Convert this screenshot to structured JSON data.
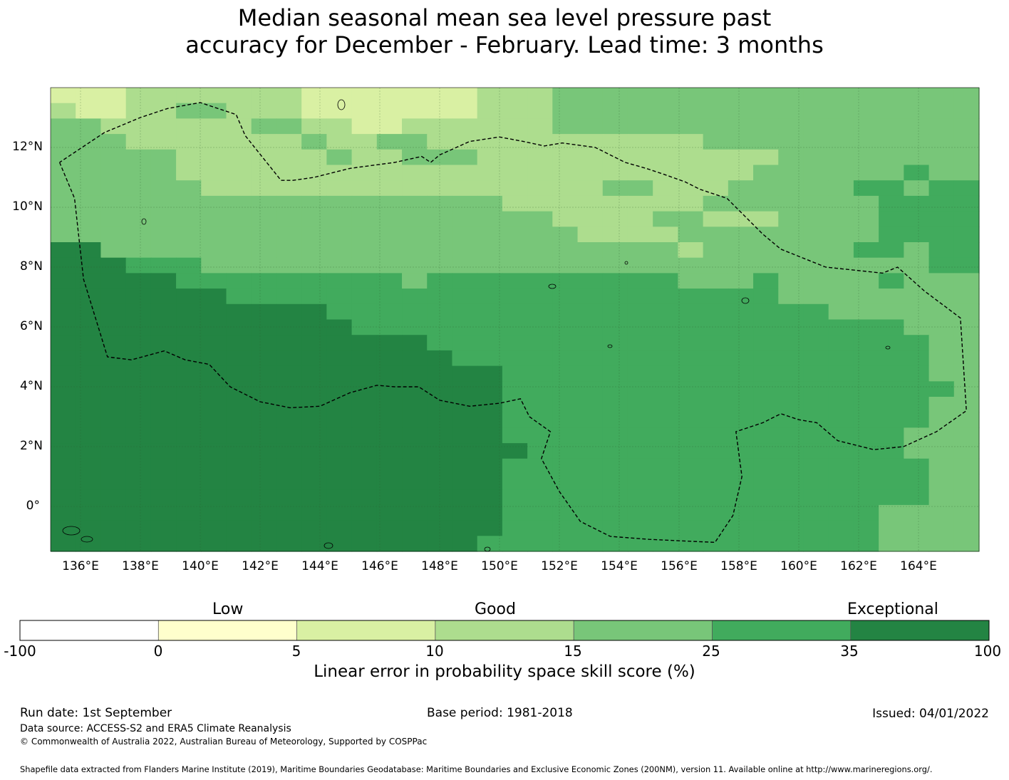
{
  "title_lines": [
    "Median seasonal mean sea level pressure past",
    "accuracy for December - February. Lead time: 3 months"
  ],
  "map": {
    "lon_labels": [
      "136°E",
      "138°E",
      "140°E",
      "142°E",
      "144°E",
      "146°E",
      "148°E",
      "150°E",
      "152°E",
      "154°E",
      "156°E",
      "158°E",
      "160°E",
      "162°E",
      "164°E"
    ],
    "lat_labels": [
      "12°N",
      "10°N",
      "8°N",
      "6°N",
      "4°N",
      "2°N",
      "0°"
    ],
    "lon_range": [
      135,
      166
    ],
    "lat_range": [
      -1.5,
      14
    ],
    "ocean_default_color": "#79c579",
    "grid_rows": [
      "AAABBBBBBBAAAAAAABBBCCCCCCCCCCCCCCCCC",
      "BAABBCCBBBAAAAAAABBBCCCCCCCCCCCCCCCCC",
      "CCBBBBBBCCBBAABBBBBBCCCCCCCCCCCCCCCCC",
      "CCCBBBBBBBCBBCCBBBBBBBBBBBCCCCCCCCCCC",
      "CCCCCBBBBBBCBBCCCBBBBBBBBBBBBCCCCCCCC",
      "CCCCCBBBBBBBBBBBBBBBBBBBBBBBCCCCCCDCC",
      "CCCCCCBBBBBBBBBBBBBBBBCCBBBCCCCCDDCDD",
      "CCCCCCCCCCCCCCCCCCBBBBBBBBCCCCCCCDDDD",
      "CCCCCCCCCCCCCCCCCCCCBBBBCCBBBCCCCDDDD",
      "CCCCCCCCCCCCCCCCCCCCCBBBBCCCCCCCCDDDD",
      "EECCCCCCCCCCCCCCCCCCCCCCCBCCCCCCDDCDD",
      "EEEDDDCCCCCCCCCCCCCCCCCCCCCCCCCCCCCDD",
      "EEEEEDDDDDDDDDCDDDDDDDDDDCCCDCCCCDCCC",
      "EEEEEEEDDDDDDDDDDDDDDDDDDDDDDCCCCCCCC",
      "EEEEEEEEEEEDDDDDDDDDDDDDDDDDDDDCCCCCC",
      "EEEEEEEEEEEEDDDDDDDDDDDDDDDDDDDDDDCCC",
      "EEEEEEEEEEEEEEEDDDDDDDDDDDDDDDDDDDDCC",
      "EEEEEEEEEEEEEEEEDDDDDDDDDDDDDDDDDDDCC",
      "EEEEEEEEEEEEEEEEEEDDDDDDDDDDDDDDDDDCC",
      "EEEEEEEEEEEEEEEEEEDDDDDDDDDDDDDDDDDDC",
      "EEEEEEEEEEEEEEEEEEDDDDDDDDDDDDDDDDDCC",
      "EEEEEEEEEEEEEEEEEEDDDDDDDDDDDDDDDDDCC",
      "EEEEEEEEEEEEEEEEEEDDDDDDDDDDDDDDDDCCC",
      "EEEEEEEEEEEEEEEEEEEDDDDDDDDDDDDDDDCCC",
      "EEEEEEEEEEEEEEEEEEDDDDDDDDDDDDDDDDDCC",
      "EEEEEEEEEEEEEEEEEEDDDDDDDDDDDDDDDDDCC",
      "EEEEEEEEEEEEEEEEEEDDDDDDDDDDDDDDDDDCC",
      "EEEEEEEEEEEEEEEEEEDDDDDDDDDDDDDDDCCCC",
      "EEEEEEEEEEEEEEEEEEDDDDDDDDDDDDDDDCCCC",
      "EEEEEEEEEEEEEEEEEDDDDDDDDDDDDDDDDCCCC"
    ],
    "eez_boundary_lonlat": [
      [
        135.3,
        11.5
      ],
      [
        135.8,
        10.3
      ],
      [
        136.1,
        7.6
      ],
      [
        136.9,
        5.0
      ],
      [
        137.7,
        4.9
      ],
      [
        138.8,
        5.2
      ],
      [
        139.5,
        4.9
      ],
      [
        140.3,
        4.75
      ],
      [
        141.0,
        4.0
      ],
      [
        142.0,
        3.5
      ],
      [
        143.0,
        3.3
      ],
      [
        144.0,
        3.35
      ],
      [
        145.0,
        3.8
      ],
      [
        145.9,
        4.05
      ],
      [
        146.5,
        4.0
      ],
      [
        147.3,
        4.0
      ],
      [
        148.0,
        3.55
      ],
      [
        149.0,
        3.35
      ],
      [
        150.0,
        3.45
      ],
      [
        150.7,
        3.6
      ],
      [
        151.0,
        3.0
      ],
      [
        151.7,
        2.5
      ],
      [
        151.4,
        1.6
      ],
      [
        152.0,
        0.5
      ],
      [
        152.7,
        -0.5
      ],
      [
        153.7,
        -1.0
      ],
      [
        155.0,
        -1.1
      ],
      [
        157.2,
        -1.2
      ],
      [
        157.8,
        -0.3
      ],
      [
        158.1,
        1.0
      ],
      [
        157.9,
        2.5
      ],
      [
        158.8,
        2.8
      ],
      [
        159.4,
        3.1
      ],
      [
        160.0,
        2.9
      ],
      [
        160.6,
        2.8
      ],
      [
        161.3,
        2.2
      ],
      [
        162.5,
        1.9
      ],
      [
        163.5,
        2.0
      ],
      [
        164.6,
        2.5
      ],
      [
        165.6,
        3.2
      ],
      [
        165.4,
        6.3
      ],
      [
        164.2,
        7.2
      ],
      [
        163.3,
        8.0
      ],
      [
        162.8,
        7.8
      ],
      [
        160.9,
        8.0
      ],
      [
        159.4,
        8.6
      ],
      [
        158.8,
        9.1
      ],
      [
        158.3,
        9.6
      ],
      [
        157.6,
        10.3
      ],
      [
        157.3,
        10.4
      ],
      [
        156.7,
        10.6
      ],
      [
        156.2,
        10.85
      ],
      [
        155.5,
        11.1
      ],
      [
        154.9,
        11.3
      ],
      [
        154.2,
        11.5
      ],
      [
        153.2,
        12.0
      ],
      [
        152.1,
        12.15
      ],
      [
        151.5,
        12.05
      ],
      [
        150.8,
        12.2
      ],
      [
        150.0,
        12.35
      ],
      [
        149.0,
        12.2
      ],
      [
        148.0,
        11.75
      ],
      [
        147.7,
        11.5
      ],
      [
        147.4,
        11.7
      ],
      [
        146.5,
        11.5
      ],
      [
        145.0,
        11.3
      ],
      [
        143.8,
        11.0
      ],
      [
        143.1,
        10.9
      ],
      [
        142.7,
        10.9
      ],
      [
        141.5,
        12.4
      ],
      [
        141.2,
        13.1
      ],
      [
        140.0,
        13.5
      ],
      [
        138.9,
        13.3
      ],
      [
        138.0,
        13.0
      ],
      [
        136.8,
        12.5
      ],
      [
        135.9,
        11.9
      ],
      [
        135.3,
        11.5
      ]
    ]
  },
  "colorbar": {
    "category_labels": [
      "Low",
      "Good",
      "Exceptional"
    ],
    "tick_labels": [
      "-100",
      "0",
      "5",
      "10",
      "15",
      "25",
      "35",
      "100"
    ],
    "colors": [
      "#ffffff",
      "#ffffcc",
      "#d9f0a3",
      "#addd8e",
      "#78c679",
      "#41ab5d",
      "#238443"
    ],
    "title": "Linear error in probability space skill score (%)"
  },
  "palette": {
    "A": "#d9f0a3",
    "B": "#addd8e",
    "C": "#78c679",
    "D": "#41ab5d",
    "E": "#238443"
  },
  "footer": {
    "run_date": "Run date: 1st September",
    "base_period": "Base period: 1981-2018",
    "issued": "Issued: 04/01/2022",
    "data_source": "Data source: ACCESS-S2 and ERA5 Climate Reanalysis",
    "copyright": "© Commonwealth of Australia 2022, Australian Bureau of Meteorology, Supported by COSPPac",
    "shapefile": "Shapefile data extracted from Flanders Marine Institute (2019), Maritime Boundaries Geodatabase: Maritime Boundaries and Exclusive Economic Zones (200NM), version 11. Available online at http://www.marineregions.org/."
  }
}
